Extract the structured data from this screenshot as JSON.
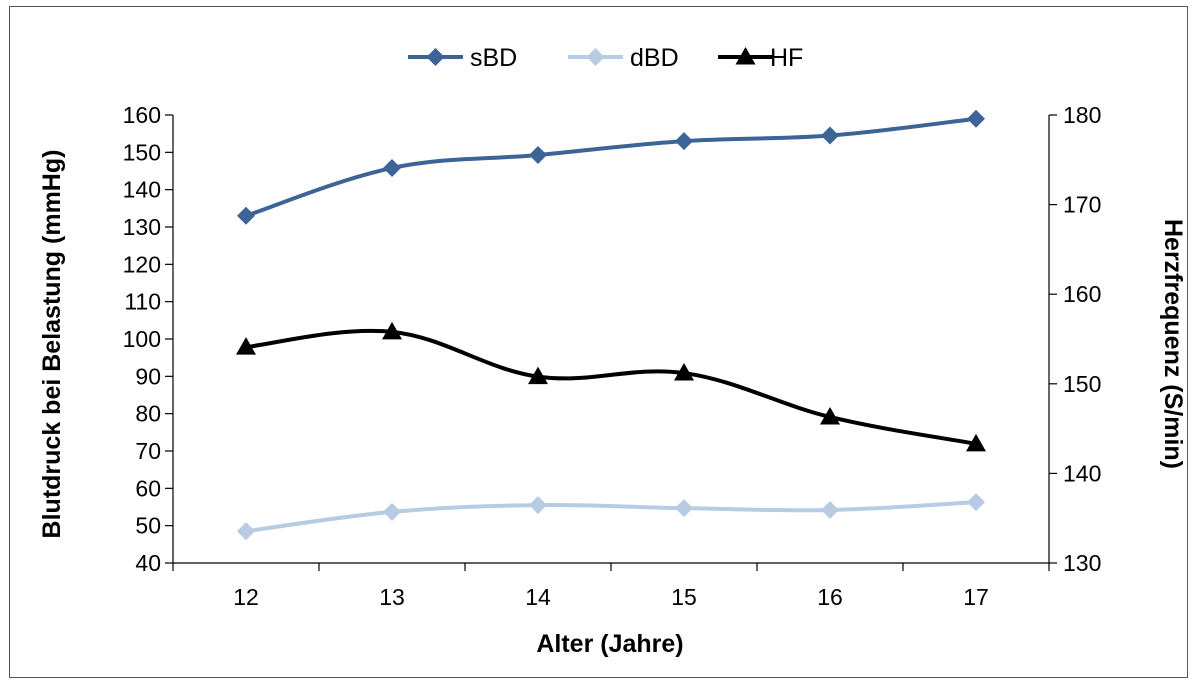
{
  "chart_data": {
    "type": "line",
    "title": "",
    "x": [
      12,
      13,
      14,
      15,
      16,
      17
    ],
    "xlabel": "Alter (Jahre)",
    "ylabel": "Blutdruck bei Belastung (mmHg)",
    "y2label": "Herzfrequenz (S/min)",
    "ylim": [
      40,
      160
    ],
    "y2lim": [
      130,
      180
    ],
    "yticks": [
      40,
      50,
      60,
      70,
      80,
      90,
      100,
      110,
      120,
      130,
      140,
      150,
      160
    ],
    "y2ticks": [
      130,
      140,
      150,
      160,
      170,
      180
    ],
    "grid": false,
    "legend": "top",
    "series": [
      {
        "name": "sBD",
        "axis": "left",
        "color": "#3C6496",
        "marker": "diamond",
        "values": [
          133,
          145.8,
          149.3,
          153,
          154.5,
          159
        ]
      },
      {
        "name": "dBD",
        "axis": "left",
        "color": "#B7CBE3",
        "marker": "diamond",
        "values": [
          48.5,
          53.7,
          55.5,
          54.7,
          54.2,
          56.3
        ]
      },
      {
        "name": "HF",
        "axis": "right",
        "color": "#000000",
        "marker": "triangle",
        "values": [
          154.1,
          155.8,
          150.8,
          151.2,
          146.3,
          143.3
        ]
      }
    ]
  }
}
